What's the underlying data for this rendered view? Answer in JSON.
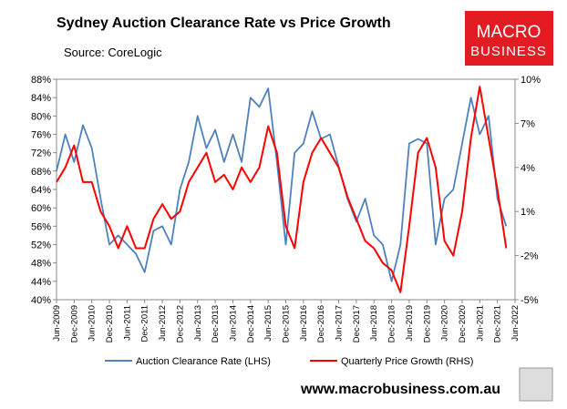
{
  "chart_data": {
    "type": "line",
    "title": "Sydney Auction Clearance Rate vs Price Growth",
    "subtitle": "Source: CoreLogic",
    "logo_top": "MACRO",
    "logo_bottom": "BUSINESS",
    "footer": "www.macrobusiness.com.au",
    "categories": [
      "Jun-2009",
      null,
      "Dec-2009",
      null,
      "Jun-2010",
      null,
      "Dec-2010",
      null,
      "Jun-2011",
      null,
      "Dec-2011",
      null,
      "Jun-2012",
      null,
      "Dec-2012",
      null,
      "Jun-2013",
      null,
      "Dec-2013",
      null,
      "Jun-2014",
      null,
      "Dec-2014",
      null,
      "Jun-2015",
      null,
      "Dec-2015",
      null,
      "Jun-2016",
      null,
      "Dec-2016",
      null,
      "Jun-2017",
      null,
      "Dec-2017",
      null,
      "Jun-2018",
      null,
      "Dec-2018",
      null,
      "Jun-2019",
      null,
      "Dec-2019",
      null,
      "Jun-2020",
      null,
      "Dec-2020",
      null,
      "Jun-2021",
      null,
      "Dec-2021",
      null,
      "Jun-2022"
    ],
    "series": [
      {
        "name": "Auction Clearance Rate (LHS)",
        "color": "#4f81bd",
        "axis": "y",
        "values": [
          68,
          76,
          70,
          78,
          73,
          62,
          52,
          54,
          52,
          50,
          46,
          55,
          56,
          52,
          64,
          70,
          80,
          73,
          77,
          70,
          76,
          70,
          84,
          82,
          86,
          70,
          52,
          72,
          74,
          81,
          75,
          76,
          69,
          62,
          57,
          62,
          54,
          52,
          44,
          52,
          74,
          75,
          74,
          52,
          62,
          64,
          74,
          84,
          76,
          80,
          62,
          56,
          null
        ]
      },
      {
        "name": "Quarterly Price Growth (RHS)",
        "color": "#ff0000",
        "axis": "y2",
        "values": [
          3,
          4,
          5.5,
          3,
          3,
          1,
          0,
          -1.5,
          0,
          -1.5,
          -1.5,
          0.5,
          1.5,
          0.5,
          1,
          3,
          4,
          5,
          3,
          3.5,
          2.5,
          4,
          3,
          4,
          6.8,
          5,
          0,
          -1.5,
          3,
          5,
          6,
          5,
          4,
          2,
          0.5,
          -1,
          -1.5,
          -2.5,
          -3,
          -4.5,
          0,
          5,
          6,
          4,
          -1,
          -2,
          1,
          6,
          9.5,
          6,
          2.5,
          -1.5,
          null
        ]
      }
    ],
    "ylim": [
      40,
      88
    ],
    "yticks": [
      {
        "value": 40,
        "label": "40%"
      },
      {
        "value": 44,
        "label": "44%"
      },
      {
        "value": 48,
        "label": "48%"
      },
      {
        "value": 52,
        "label": "52%"
      },
      {
        "value": 56,
        "label": "56%"
      },
      {
        "value": 60,
        "label": "60%"
      },
      {
        "value": 64,
        "label": "64%"
      },
      {
        "value": 68,
        "label": "68%"
      },
      {
        "value": 72,
        "label": "72%"
      },
      {
        "value": 76,
        "label": "76%"
      },
      {
        "value": 80,
        "label": "80%"
      },
      {
        "value": 84,
        "label": "84%"
      },
      {
        "value": 88,
        "label": "88%"
      }
    ],
    "y2lim": [
      -5,
      10
    ],
    "y2ticks": [
      {
        "value": -5,
        "label": "-5%"
      },
      {
        "value": -2,
        "label": "-2%"
      },
      {
        "value": 1,
        "label": "1%"
      },
      {
        "value": 4,
        "label": "4%"
      },
      {
        "value": 7,
        "label": "7%"
      },
      {
        "value": 10,
        "label": "10%"
      }
    ]
  }
}
